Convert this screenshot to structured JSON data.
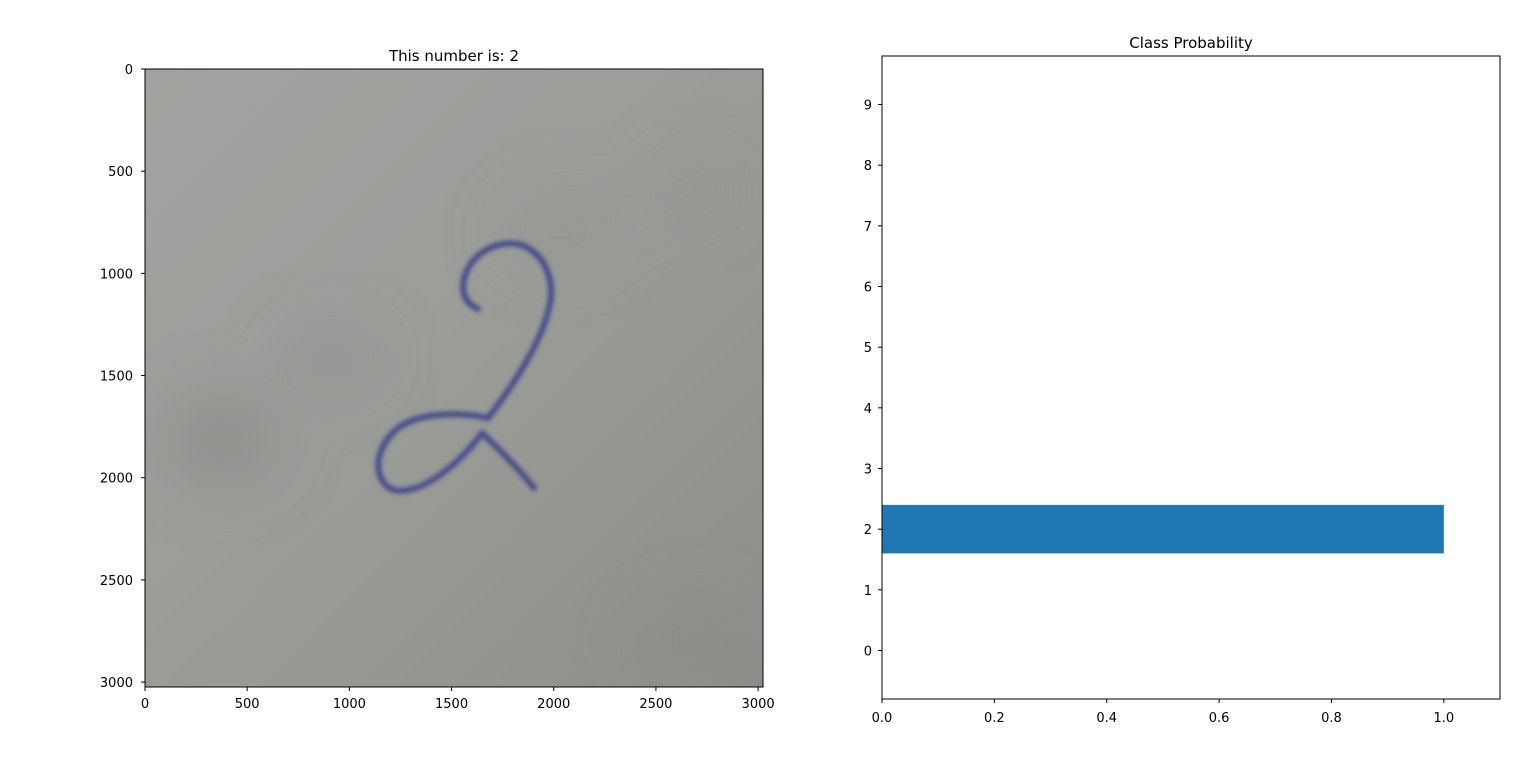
{
  "chart_data": [
    {
      "type": "image",
      "title": "This number is: 2",
      "xlim": [
        0,
        3024
      ],
      "ylim": [
        3024,
        0
      ],
      "x_ticks": [
        0,
        500,
        1000,
        1500,
        2000,
        2500,
        3000
      ],
      "y_ticks": [
        0,
        500,
        1000,
        1500,
        2000,
        2500,
        3000
      ],
      "content": "handwritten digit on paper",
      "digit": "2",
      "ink_color": "#3a3f8a",
      "paper_color": "#9a9c98"
    },
    {
      "type": "bar",
      "orientation": "horizontal",
      "title": "Class Probability",
      "categories": [
        "0",
        "1",
        "2",
        "3",
        "4",
        "5",
        "6",
        "7",
        "8",
        "9"
      ],
      "values": [
        0,
        0,
        1.0,
        0,
        0,
        0,
        0,
        0,
        0,
        0
      ],
      "xlim": [
        0,
        1.1
      ],
      "x_ticks": [
        0.0,
        0.2,
        0.4,
        0.6,
        0.8,
        1.0
      ],
      "x_tick_labels": [
        "0.0",
        "0.2",
        "0.4",
        "0.6",
        "0.8",
        "1.0"
      ],
      "bar_color": "#1f77b4",
      "xlabel": "",
      "ylabel": ""
    }
  ]
}
